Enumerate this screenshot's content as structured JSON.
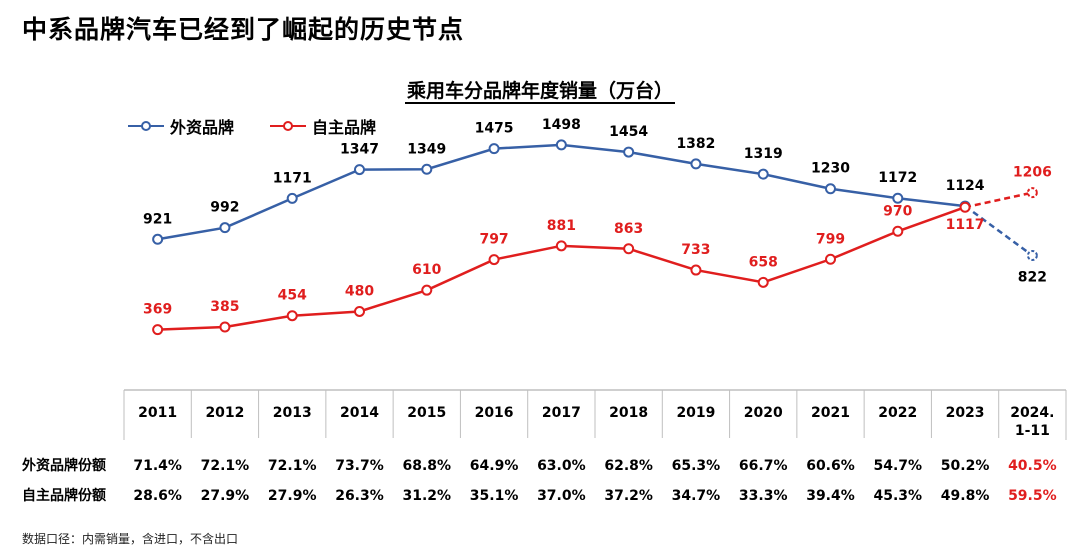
{
  "page": {
    "title": "中系品牌汽车已经到了崛起的历史节点",
    "footnote": "数据口径：内需销量，含进口，不含出口"
  },
  "colors": {
    "foreign": "#3760a6",
    "domestic": "#e01e1e",
    "axis": "#bfbfbf"
  },
  "chart_data": {
    "type": "line",
    "title": "乘用车分品牌年度销量（万台）",
    "categories": [
      "2011",
      "2012",
      "2013",
      "2014",
      "2015",
      "2016",
      "2017",
      "2018",
      "2019",
      "2020",
      "2021",
      "2022",
      "2023",
      "2024.\n1-11"
    ],
    "series": [
      {
        "name": "外资品牌",
        "color": "#3760a6",
        "values": [
          921,
          992,
          1171,
          1347,
          1349,
          1475,
          1498,
          1454,
          1382,
          1319,
          1230,
          1172,
          1124,
          822
        ]
      },
      {
        "name": "自主品牌",
        "color": "#e01e1e",
        "values": [
          369,
          385,
          454,
          480,
          610,
          797,
          881,
          863,
          733,
          658,
          799,
          970,
          1117,
          1206
        ]
      }
    ],
    "last_segment_dashed": true,
    "ylim": [
      0,
      1650
    ],
    "table": {
      "rows": [
        {
          "label": "外资品牌份额",
          "values": [
            "71.4%",
            "72.1%",
            "72.1%",
            "73.7%",
            "68.8%",
            "64.9%",
            "63.0%",
            "62.8%",
            "65.3%",
            "66.7%",
            "60.6%",
            "54.7%",
            "50.2%",
            "40.5%"
          ]
        },
        {
          "label": "自主品牌份额",
          "values": [
            "28.6%",
            "27.9%",
            "27.9%",
            "26.3%",
            "31.2%",
            "35.1%",
            "37.0%",
            "37.2%",
            "34.7%",
            "33.3%",
            "39.4%",
            "45.3%",
            "49.8%",
            "59.5%"
          ]
        }
      ],
      "highlight_last": true
    }
  }
}
